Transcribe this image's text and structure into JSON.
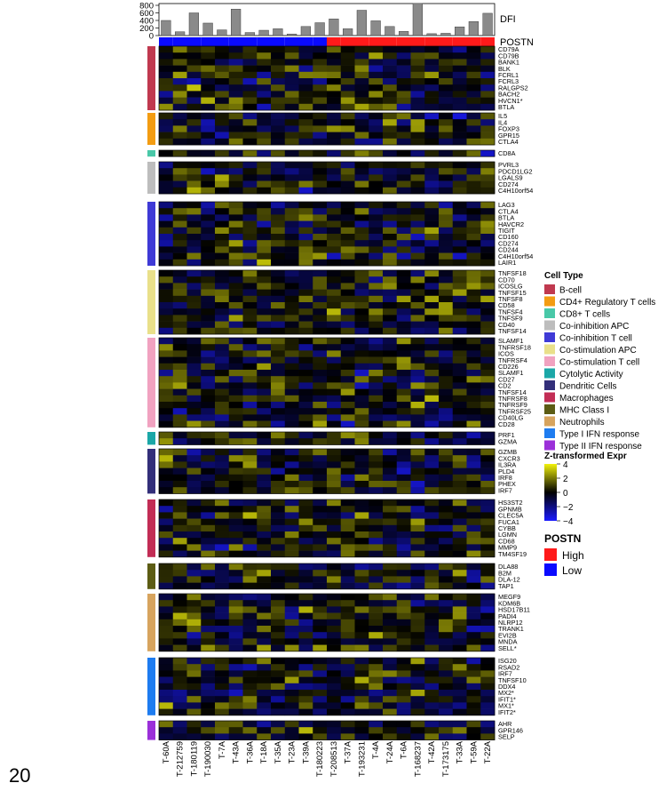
{
  "page_number": "20",
  "chart_data": {
    "type": "heatmap",
    "samples": [
      "T-60A",
      "T-212759",
      "T-180119",
      "T-190030",
      "T-7A",
      "T-43A",
      "T-36A",
      "T-18A",
      "T-35A",
      "T-23A",
      "T-39A",
      "T-180223",
      "T-208513",
      "T-37A",
      "T-193231",
      "T-4A",
      "T-24A",
      "T-6A",
      "T-168237",
      "T-42A",
      "T-173175",
      "T-33A",
      "T-59A",
      "T-22A"
    ],
    "dfi": {
      "label": "DFI",
      "ticks": [
        "800",
        "600",
        "400",
        "200",
        "0"
      ],
      "ylim": [
        0,
        800
      ],
      "values": [
        400,
        100,
        600,
        330,
        150,
        700,
        80,
        140,
        180,
        40,
        240,
        340,
        440,
        180,
        670,
        390,
        240,
        110,
        850,
        50,
        60,
        230,
        370,
        590
      ]
    },
    "postn": {
      "label": "POSTN",
      "values": [
        "Low",
        "Low",
        "Low",
        "Low",
        "Low",
        "Low",
        "Low",
        "Low",
        "Low",
        "Low",
        "Low",
        "Low",
        "High",
        "High",
        "High",
        "High",
        "High",
        "High",
        "High",
        "High",
        "High",
        "High",
        "High",
        "High"
      ]
    },
    "groups": [
      {
        "cell_type": "B-cell",
        "color": "#c0394f",
        "genes": [
          "CD79A",
          "CD79B",
          "BANK1",
          "BLK",
          "FCRL1",
          "FCRL3",
          "RALGPS2",
          "BACH2",
          "HVCN1*",
          "BTLA"
        ]
      },
      {
        "cell_type": "CD4+ Regulatory T cells",
        "color": "#f39c12",
        "genes": [
          "IL5",
          "IL4",
          "FOXP3",
          "GPR15",
          "CTLA4"
        ]
      },
      {
        "cell_type": "CD8+ T cells",
        "color": "#49c8a8",
        "genes": [
          "CD8A"
        ]
      },
      {
        "cell_type": "Co-inhibition APC",
        "color": "#bdbdbd",
        "genes": [
          "PVRL3",
          "PDCD1LG2",
          "LGALS9",
          "CD274",
          "C4H10orf54"
        ]
      },
      {
        "cell_type": "Co-inhibition T cell",
        "color": "#3f3ad6",
        "genes": [
          "LAG3",
          "CTLA4",
          "BTLA",
          "HAVCR2",
          "TIGIT",
          "CD160",
          "CD274",
          "CD244",
          "C4H10orf54",
          "LAIR1"
        ]
      },
      {
        "cell_type": "Co-stimulation APC",
        "color": "#e9e08a",
        "genes": [
          "TNFSF18",
          "CD70",
          "ICOSLG",
          "TNFSF15",
          "TNFSF8",
          "CD58",
          "TNFSF4",
          "TNFSF9",
          "CD40",
          "TNFSF14"
        ]
      },
      {
        "cell_type": "Co-stimulation T cell",
        "color": "#f1a2c0",
        "genes": [
          "SLAMF1",
          "TNFRSF18",
          "ICOS",
          "TNFRSF4",
          "CD226",
          "SLAMF1",
          "CD27",
          "CD2",
          "TNFSF14",
          "TNFRSF8",
          "TNFRSF9",
          "TNFRSF25",
          "CD40LG",
          "CD28"
        ]
      },
      {
        "cell_type": "Cytolytic Activity",
        "color": "#1ba7a7",
        "genes": [
          "PRF1",
          "GZMA"
        ]
      },
      {
        "cell_type": "Dendritic Cells",
        "color": "#332f7a",
        "genes": [
          "GZMB",
          "CXCR3",
          "IL3RA",
          "PLD4",
          "IRF8",
          "PHEX",
          "IRF7"
        ]
      },
      {
        "cell_type": "Macrophages",
        "color": "#c22d55",
        "genes": [
          "HS3ST2",
          "GPNMB",
          "CLEC5A",
          "FUCA1",
          "CYBB",
          "LGMN",
          "CD68",
          "MMP9",
          "TM4SF19"
        ]
      },
      {
        "cell_type": "MHC Class I",
        "color": "#5c5c14",
        "genes": [
          "DLA88",
          "B2M",
          "DLA-12",
          "TAP1"
        ]
      },
      {
        "cell_type": "Neutrophils",
        "color": "#d7a45e",
        "genes": [
          "MEGF9",
          "KDM6B",
          "HSD17B11",
          "PADI4",
          "NLRP12",
          "TRANK1",
          "EVI2B",
          "MNDA",
          "SELL*"
        ]
      },
      {
        "cell_type": "Type I IFN response",
        "color": "#1e7cf0",
        "genes": [
          "ISG20",
          "RSAD2",
          "IRF7",
          "TNFSF10",
          "DDX4",
          "MX2*",
          "IFIT1*",
          "MX1*",
          "IFIT2*"
        ]
      },
      {
        "cell_type": "Type II IFN response",
        "color": "#9b30d9",
        "genes": [
          "AHR",
          "GPR146",
          "SELP"
        ]
      }
    ],
    "legend": {
      "cell_type_title": "Cell Type",
      "expr_title": "Z-transformed Expr",
      "expr_ticks": [
        "4",
        "2",
        "0",
        "−2",
        "−4"
      ],
      "expr_range": [
        -4,
        4
      ],
      "expr_colors": {
        "high": "#f2f20a",
        "mid": "#000000",
        "low": "#1a1aff"
      },
      "postn_title": "POSTN",
      "postn_items": [
        {
          "label": "High",
          "color": "#ff1a1a"
        },
        {
          "label": "Low",
          "color": "#0a0aff"
        }
      ]
    }
  }
}
